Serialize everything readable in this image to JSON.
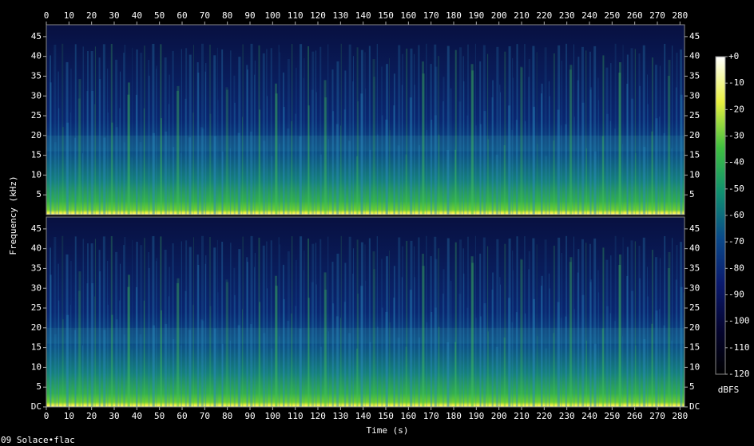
{
  "chart_data": {
    "type": "spectrogram",
    "xlabel": "Time (s)",
    "ylabel": "Frequency (kHz)",
    "footer": "09 Solace•flac",
    "xlim": [
      0,
      282
    ],
    "xticks": [
      0,
      10,
      20,
      30,
      40,
      50,
      60,
      70,
      80,
      90,
      100,
      110,
      120,
      130,
      140,
      150,
      160,
      170,
      180,
      190,
      200,
      210,
      220,
      230,
      240,
      250,
      260,
      270,
      280
    ],
    "channels": [
      {
        "ylim": [
          0,
          48
        ],
        "yticks": [
          5,
          10,
          15,
          20,
          25,
          30,
          35,
          40,
          45
        ]
      },
      {
        "ylim": [
          0,
          48
        ],
        "yticks": [
          {
            "value": 0,
            "label": "DC"
          },
          5,
          10,
          15,
          20,
          25,
          30,
          35,
          40,
          45
        ]
      }
    ],
    "colorbar": {
      "label": "dBFS",
      "lim": [
        -120,
        0
      ],
      "ticks": [
        {
          "value": 0,
          "label": "+0"
        },
        -10,
        -20,
        -30,
        -40,
        -50,
        -60,
        -70,
        -80,
        -90,
        -100,
        -110,
        -120
      ],
      "colors": [
        "#000000",
        "#050530",
        "#0a1a6e",
        "#0a4a8a",
        "#109070",
        "#40c040",
        "#e8f040",
        "#ffffff"
      ]
    }
  }
}
